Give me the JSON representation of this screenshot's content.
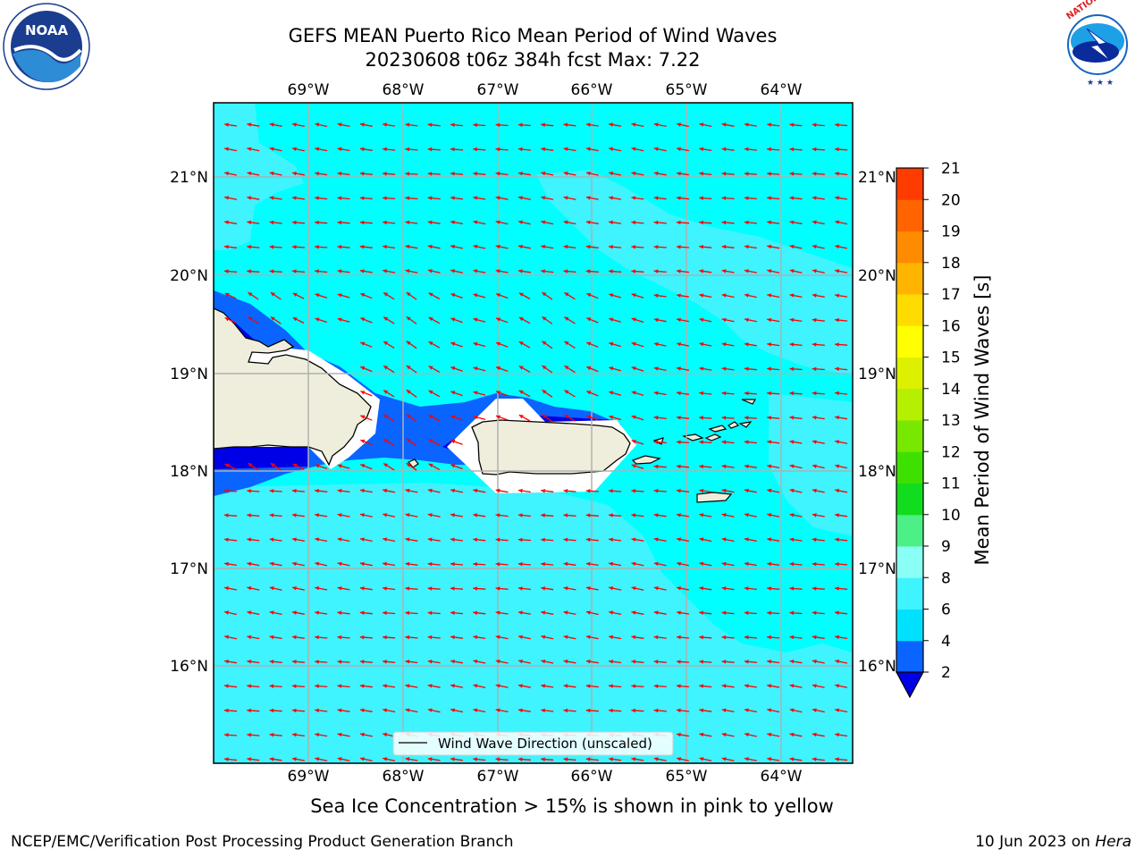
{
  "title_line1": "GEFS MEAN Puerto Rico Mean Period of Wind Waves",
  "title_line2": "20230608 t06z 384h fcst   Max: 7.22",
  "lon_labels": [
    "69°W",
    "68°W",
    "67°W",
    "66°W",
    "65°W",
    "64°W"
  ],
  "lat_labels": [
    "21°N",
    "20°N",
    "19°N",
    "18°N",
    "17°N",
    "16°N"
  ],
  "legend_label": "Wind Wave Direction (unscaled)",
  "colorbar": {
    "label": "Mean Period of Wind Waves [s]",
    "ticks": [
      "2",
      "4",
      "6",
      "8",
      "9",
      "10",
      "11",
      "12",
      "13",
      "14",
      "15",
      "16",
      "17",
      "18",
      "19",
      "20",
      "21"
    ],
    "colors": [
      "#0a64ff",
      "#00e1ff",
      "#3ff3ff",
      "#8afff5",
      "#4cf086",
      "#12dc1e",
      "#3ee000",
      "#78e800",
      "#b4f000",
      "#dcf000",
      "#ffff00",
      "#ffdc00",
      "#ffb400",
      "#ff8c00",
      "#ff6400",
      "#ff3c00",
      "#ff0000"
    ],
    "under_color": "#0000e6"
  },
  "colors": {
    "ocean_base": "#00ffff",
    "ocean_light": "#3ff3ff",
    "shallow_mid": "#0a64ff",
    "shallow_dark": "#0000e6",
    "land": "#efeedc",
    "arrow": "#ff0000",
    "grid": "#b0b0b0"
  },
  "caption": "Sea Ice Concentration > 15% is shown in pink to yellow",
  "footer_left": "NCEP/EMC/Verification Post Processing Product Generation Branch",
  "footer_date": "10 Jun 2023 on ",
  "footer_machine": "Hera",
  "noaa_logo_text": "NOAA",
  "nws_logo_text": "NATIONAL WEATHER SERVICE"
}
